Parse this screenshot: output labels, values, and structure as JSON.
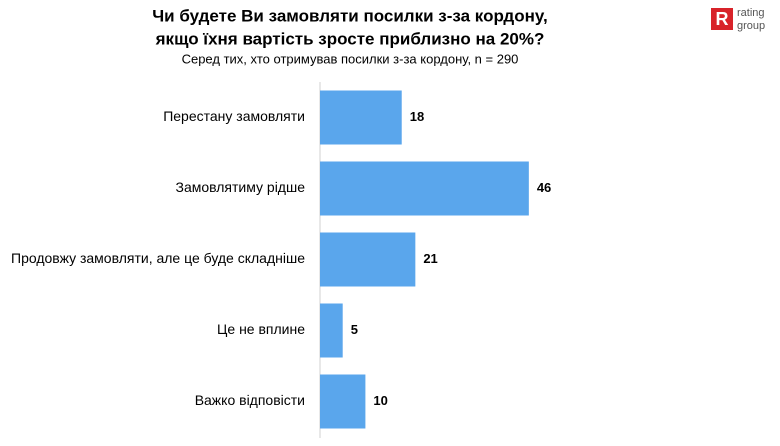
{
  "chart_data": {
    "type": "barh",
    "title": [
      "Чи будете Ви замовляти посилки з-за кордону,",
      "якщо їхня вартість зросте приблизно на 20%?"
    ],
    "subtitle": "Серед тих, хто отримував посилки з-за кордону, n = 290",
    "categories": [
      "Перестану замовляти",
      "Замовлятиму рідше",
      "Продовжу замовляти, але це буде складніше",
      "Це не вплине",
      "Важко відповісти"
    ],
    "values": [
      18,
      46,
      21,
      5,
      10
    ],
    "color": "#5aa6ec"
  },
  "logo": {
    "mark": "R",
    "lines": [
      "rating",
      "group"
    ]
  }
}
